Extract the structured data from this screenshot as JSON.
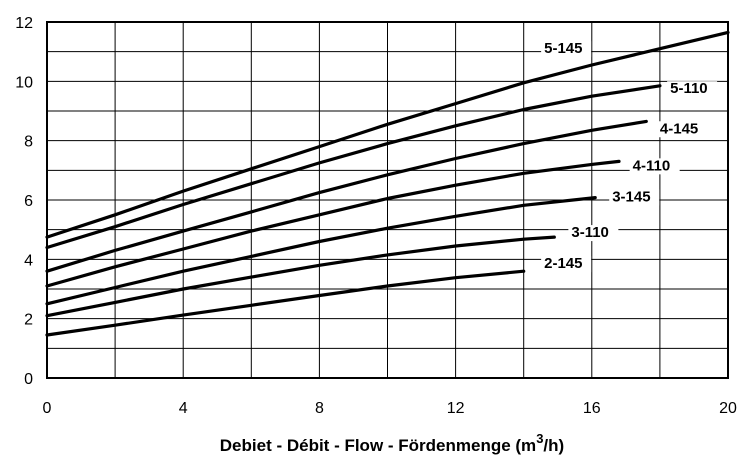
{
  "chart_data": {
    "type": "line",
    "title": "",
    "xlabel": "Debiet - Débit - Flow - Fördenmenge (m",
    "xlabel_sup": "3",
    "xlabel_end": "/h)",
    "ylabel": "",
    "xlim": [
      0,
      20
    ],
    "ylim": [
      0,
      12
    ],
    "x_ticks": [
      0,
      4,
      8,
      12,
      16,
      20
    ],
    "y_ticks": [
      0,
      2,
      4,
      6,
      8,
      10,
      12
    ],
    "grid": true,
    "x_gridlines": [
      0,
      2,
      4,
      6,
      8,
      10,
      12,
      14,
      16,
      18,
      20
    ],
    "y_gridlines": [
      0,
      1,
      2,
      3,
      4,
      5,
      6,
      7,
      8,
      9,
      10,
      11,
      12
    ],
    "series": [
      {
        "name": "2-145",
        "x": [
          0,
          2,
          4,
          6,
          8,
          10,
          12,
          14
        ],
        "y": [
          1.45,
          1.78,
          2.12,
          2.45,
          2.78,
          3.1,
          3.38,
          3.6
        ],
        "label_at": [
          14.6,
          3.7
        ]
      },
      {
        "name": "3-110",
        "x": [
          0,
          2,
          4,
          6,
          8,
          10,
          12,
          14,
          14.9
        ],
        "y": [
          2.1,
          2.55,
          3.0,
          3.4,
          3.8,
          4.15,
          4.45,
          4.68,
          4.75
        ],
        "label_at": [
          15.4,
          4.75
        ]
      },
      {
        "name": "3-145",
        "x": [
          0,
          2,
          4,
          6,
          8,
          10,
          12,
          14,
          16.1
        ],
        "y": [
          2.5,
          3.05,
          3.6,
          4.1,
          4.6,
          5.05,
          5.45,
          5.82,
          6.08
        ],
        "label_at": [
          16.6,
          5.95
        ]
      },
      {
        "name": "4-110",
        "x": [
          0,
          2,
          4,
          6,
          8,
          10,
          12,
          14,
          16,
          16.8
        ],
        "y": [
          3.1,
          3.75,
          4.35,
          4.95,
          5.5,
          6.05,
          6.5,
          6.9,
          7.2,
          7.3
        ],
        "label_at": [
          17.2,
          7.0
        ]
      },
      {
        "name": "4-145",
        "x": [
          0,
          2,
          4,
          6,
          8,
          10,
          12,
          14,
          16,
          17.6
        ],
        "y": [
          3.6,
          4.3,
          4.95,
          5.6,
          6.25,
          6.85,
          7.4,
          7.9,
          8.35,
          8.65
        ],
        "label_at": [
          18.0,
          8.25
        ]
      },
      {
        "name": "5-110",
        "x": [
          0,
          2,
          4,
          6,
          8,
          10,
          12,
          14,
          16,
          18
        ],
        "y": [
          4.4,
          5.1,
          5.85,
          6.55,
          7.25,
          7.9,
          8.5,
          9.05,
          9.5,
          9.85
        ],
        "label_at": [
          18.3,
          9.6
        ]
      },
      {
        "name": "5-145",
        "x": [
          0,
          2,
          4,
          6,
          8,
          10,
          12,
          14,
          16,
          18,
          20
        ],
        "y": [
          4.75,
          5.5,
          6.3,
          7.05,
          7.8,
          8.55,
          9.25,
          9.95,
          10.55,
          11.1,
          11.65
        ],
        "label_at": [
          14.6,
          10.95
        ]
      }
    ]
  }
}
